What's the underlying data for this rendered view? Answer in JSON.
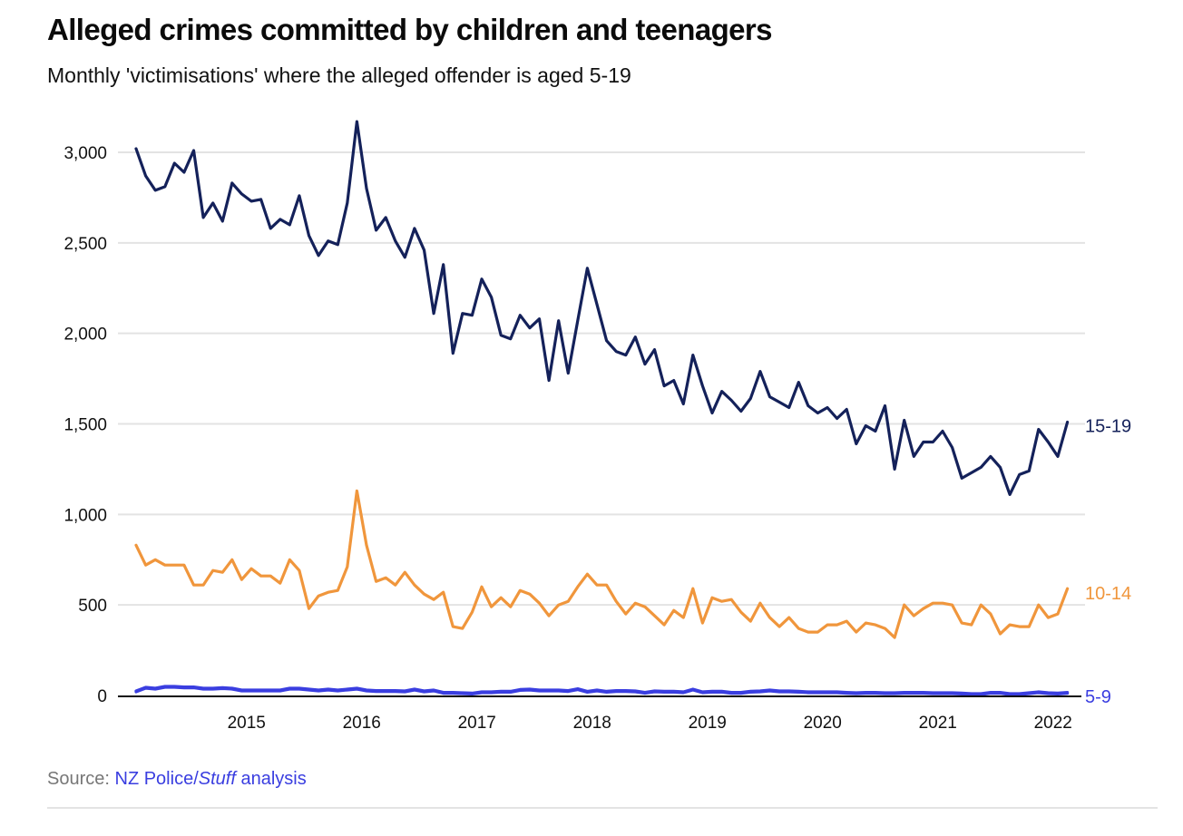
{
  "header": {
    "title": "Alleged crimes committed by children and teenagers",
    "subtitle": "Monthly 'victimisations' where the alleged offender is aged 5-19"
  },
  "footer": {
    "source_label": "Source:",
    "source_link_part1": "NZ Police/",
    "source_link_italic": "Stuff",
    "source_link_part2": " analysis"
  },
  "colors": {
    "series_15_19": "#14215a",
    "series_10_14": "#f0963c",
    "series_5_9": "#3a3ee0",
    "gridline": "#e3e3e3",
    "baseline": "#111111"
  },
  "chart_data": {
    "type": "line",
    "title": "Alleged crimes committed by children and teenagers",
    "subtitle": "Monthly 'victimisations' where the alleged offender is aged 5-19",
    "xlabel": "",
    "ylabel": "",
    "x_start": "2014-07",
    "x_end": "2022-08",
    "x_interval": "month",
    "xticks": [
      "2015",
      "2016",
      "2017",
      "2018",
      "2019",
      "2020",
      "2021",
      "2022"
    ],
    "yticks": [
      "0",
      "500",
      "1,000",
      "1,500",
      "2,000",
      "2,500",
      "3,000"
    ],
    "ytick_values": [
      0,
      500,
      1000,
      1500,
      2000,
      2500,
      3000
    ],
    "ylim": [
      0,
      3100
    ],
    "grid": true,
    "legend": "direct labels at line ends (right)",
    "series": [
      {
        "name": "15-19",
        "color": "#14215a",
        "values": [
          3020,
          2870,
          2790,
          2810,
          2940,
          2890,
          3010,
          2640,
          2720,
          2620,
          2830,
          2770,
          2730,
          2740,
          2580,
          2630,
          2600,
          2760,
          2540,
          2430,
          2510,
          2490,
          2720,
          3170,
          2800,
          2570,
          2640,
          2510,
          2420,
          2580,
          2460,
          2110,
          2380,
          1890,
          2110,
          2100,
          2300,
          2200,
          1990,
          1970,
          2100,
          2030,
          2080,
          1740,
          2070,
          1780,
          2070,
          2360,
          2160,
          1960,
          1900,
          1880,
          1980,
          1830,
          1910,
          1710,
          1740,
          1610,
          1880,
          1710,
          1560,
          1680,
          1630,
          1570,
          1640,
          1790,
          1650,
          1620,
          1590,
          1730,
          1600,
          1560,
          1590,
          1530,
          1580,
          1390,
          1490,
          1460,
          1600,
          1250,
          1520,
          1320,
          1400,
          1400,
          1460,
          1370,
          1200,
          1230,
          1260,
          1320,
          1260,
          1110,
          1220,
          1240,
          1470,
          1400,
          1320,
          1510
        ]
      },
      {
        "name": "10-14",
        "color": "#f0963c",
        "values": [
          830,
          720,
          750,
          720,
          720,
          720,
          610,
          610,
          690,
          680,
          750,
          640,
          700,
          660,
          660,
          620,
          750,
          690,
          480,
          550,
          570,
          580,
          710,
          1130,
          830,
          630,
          650,
          610,
          680,
          610,
          560,
          530,
          570,
          380,
          370,
          460,
          600,
          490,
          540,
          490,
          580,
          560,
          510,
          440,
          500,
          520,
          600,
          670,
          610,
          610,
          520,
          450,
          510,
          490,
          440,
          390,
          470,
          430,
          590,
          400,
          540,
          520,
          530,
          460,
          410,
          510,
          430,
          380,
          430,
          370,
          350,
          350,
          390,
          390,
          410,
          350,
          400,
          390,
          370,
          320,
          500,
          440,
          480,
          510,
          510,
          500,
          400,
          390,
          500,
          450,
          340,
          390,
          380,
          380,
          500,
          430,
          450,
          590
        ]
      },
      {
        "name": "5-9",
        "color": "#3a3ee0",
        "values": [
          20,
          40,
          35,
          45,
          45,
          42,
          42,
          35,
          35,
          38,
          35,
          25,
          25,
          25,
          25,
          25,
          35,
          35,
          30,
          25,
          30,
          25,
          30,
          35,
          25,
          22,
          22,
          22,
          20,
          30,
          20,
          25,
          12,
          12,
          10,
          8,
          15,
          15,
          18,
          18,
          28,
          30,
          25,
          25,
          25,
          22,
          32,
          18,
          25,
          18,
          22,
          22,
          20,
          12,
          20,
          18,
          18,
          15,
          30,
          15,
          18,
          18,
          12,
          12,
          18,
          20,
          25,
          20,
          20,
          18,
          15,
          15,
          15,
          15,
          12,
          10,
          12,
          12,
          10,
          10,
          12,
          12,
          12,
          10,
          10,
          10,
          8,
          5,
          5,
          12,
          12,
          5,
          5,
          10,
          15,
          10,
          8,
          12
        ]
      }
    ]
  }
}
